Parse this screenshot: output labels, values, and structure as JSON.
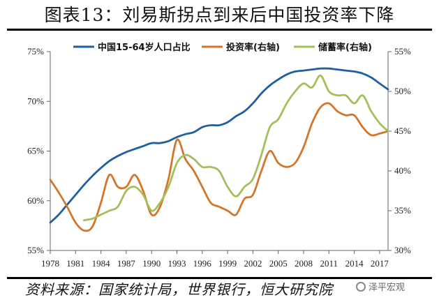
{
  "figure": {
    "title": "图表13：刘易斯拐点到来后中国投资率下降",
    "source": "资料来源：国家统计局，世界银行，恒大研究院",
    "watermark": "泽平宏观"
  },
  "chart_data": {
    "type": "line",
    "x_ticks": [
      "1978",
      "1981",
      "1984",
      "1987",
      "1990",
      "1993",
      "1996",
      "1999",
      "2002",
      "2005",
      "2008",
      "2011",
      "2014",
      "2017"
    ],
    "y_left": {
      "range": [
        55,
        75
      ],
      "ticks": [
        "55%",
        "60%",
        "65%",
        "70%",
        "75%"
      ]
    },
    "y_right": {
      "range": [
        30,
        55
      ],
      "ticks": [
        "30%",
        "35%",
        "40%",
        "45%",
        "50%",
        "55%"
      ]
    },
    "grid": false,
    "legend_position": "top",
    "series": [
      {
        "name": "中国15-64岁人口占比",
        "axis": "left",
        "color": "#1f5f9e",
        "x": [
          1978,
          1979,
          1980,
          1981,
          1982,
          1983,
          1984,
          1985,
          1986,
          1987,
          1988,
          1989,
          1990,
          1991,
          1992,
          1993,
          1994,
          1995,
          1996,
          1997,
          1998,
          1999,
          2000,
          2001,
          2002,
          2003,
          2004,
          2005,
          2006,
          2007,
          2008,
          2009,
          2010,
          2011,
          2012,
          2013,
          2014,
          2015,
          2016,
          2017,
          2018
        ],
        "values": [
          57.8,
          58.6,
          59.6,
          60.6,
          61.6,
          62.5,
          63.3,
          64.0,
          64.5,
          64.9,
          65.2,
          65.5,
          65.8,
          65.8,
          66.0,
          66.4,
          66.7,
          66.9,
          67.4,
          67.6,
          67.6,
          67.9,
          68.5,
          69.0,
          69.8,
          70.8,
          71.6,
          72.2,
          72.7,
          73.0,
          73.1,
          73.2,
          73.3,
          73.3,
          73.2,
          73.1,
          73.0,
          72.8,
          72.4,
          71.8,
          71.2
        ]
      },
      {
        "name": "投资率(右轴)",
        "axis": "right",
        "color": "#d5752a",
        "x": [
          1978,
          1979,
          1980,
          1981,
          1982,
          1983,
          1984,
          1985,
          1986,
          1987,
          1988,
          1989,
          1990,
          1991,
          1992,
          1993,
          1994,
          1995,
          1996,
          1997,
          1998,
          1999,
          2000,
          2001,
          2002,
          2003,
          2004,
          2005,
          2006,
          2007,
          2008,
          2009,
          2010,
          2011,
          2012,
          2013,
          2014,
          2015,
          2016,
          2017,
          2018
        ],
        "values": [
          38.9,
          37.3,
          35.5,
          33.5,
          32.5,
          33.0,
          36.0,
          39.5,
          38.0,
          38.0,
          39.5,
          37.5,
          34.5,
          35.5,
          39.0,
          43.9,
          41.5,
          40.0,
          38.0,
          36.0,
          35.5,
          35.0,
          34.5,
          36.5,
          37.0,
          40.0,
          42.5,
          41.0,
          40.5,
          41.0,
          43.0,
          46.0,
          48.0,
          48.5,
          47.5,
          47.0,
          47.0,
          45.5,
          44.5,
          44.7,
          45.0
        ]
      },
      {
        "name": "储蓄率(右轴)",
        "axis": "right",
        "color": "#a3bf5a",
        "x": [
          1982,
          1983,
          1984,
          1985,
          1986,
          1987,
          1988,
          1989,
          1990,
          1991,
          1992,
          1993,
          1994,
          1995,
          1996,
          1997,
          1998,
          1999,
          2000,
          2001,
          2002,
          2003,
          2004,
          2005,
          2006,
          2007,
          2008,
          2009,
          2010,
          2011,
          2012,
          2013,
          2014,
          2015,
          2016,
          2017,
          2018
        ],
        "values": [
          33.8,
          34.0,
          34.5,
          35.0,
          35.5,
          37.5,
          38.0,
          37.0,
          35.0,
          36.0,
          38.0,
          41.0,
          42.0,
          41.5,
          40.5,
          40.5,
          40.0,
          38.0,
          36.8,
          38.0,
          39.0,
          42.0,
          45.5,
          46.5,
          48.5,
          50.0,
          51.0,
          50.5,
          52.0,
          50.0,
          49.5,
          49.5,
          48.5,
          49.5,
          47.5,
          46.0,
          45.0
        ]
      }
    ]
  }
}
